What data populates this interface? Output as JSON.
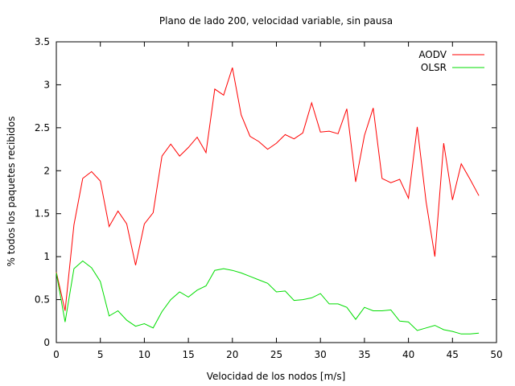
{
  "chart_data": {
    "type": "line",
    "title": "Plano de lado 200, velocidad variable, sin pausa",
    "xlabel": "Velocidad de los nodos [m/s]",
    "ylabel": "% todos los paquetes recibidos",
    "xlim": [
      0,
      50
    ],
    "ylim": [
      0,
      3.5
    ],
    "xticks": [
      0,
      5,
      10,
      15,
      20,
      25,
      30,
      35,
      40,
      45,
      50
    ],
    "xtick_labels": [
      "0",
      "5",
      "10",
      "15",
      "20",
      "25",
      "30",
      "35",
      "40",
      "45",
      "50"
    ],
    "yticks": [
      0,
      0.5,
      1,
      1.5,
      2,
      2.5,
      3,
      3.5
    ],
    "ytick_labels": [
      "0",
      "0.5",
      "1",
      "1.5",
      "2",
      "2.5",
      "3",
      "3.5"
    ],
    "grid": false,
    "legend_position": "top-right",
    "x": [
      0,
      1,
      2,
      3,
      4,
      5,
      6,
      7,
      8,
      9,
      10,
      11,
      12,
      13,
      14,
      15,
      16,
      17,
      18,
      19,
      20,
      21,
      22,
      23,
      24,
      25,
      26,
      27,
      28,
      29,
      30,
      31,
      32,
      33,
      34,
      35,
      36,
      37,
      38,
      39,
      40,
      41,
      42,
      43,
      44,
      45,
      46,
      47,
      48
    ],
    "series": [
      {
        "name": "AODV",
        "color": "#ff0000",
        "values": [
          0.82,
          0.37,
          1.37,
          1.91,
          1.99,
          1.88,
          1.35,
          1.53,
          1.38,
          0.9,
          1.38,
          1.51,
          2.17,
          2.31,
          2.17,
          2.27,
          2.39,
          2.21,
          2.95,
          2.88,
          3.2,
          2.65,
          2.4,
          2.34,
          2.25,
          2.32,
          2.42,
          2.37,
          2.44,
          2.79,
          2.45,
          2.46,
          2.43,
          2.72,
          1.87,
          2.41,
          2.73,
          1.91,
          1.86,
          1.9,
          1.68,
          2.51,
          1.64,
          1.0,
          2.32,
          1.66,
          2.08,
          1.9,
          1.71
        ]
      },
      {
        "name": "OLSR",
        "color": "#00dd00",
        "values": [
          0.81,
          0.24,
          0.86,
          0.95,
          0.87,
          0.71,
          0.31,
          0.37,
          0.26,
          0.19,
          0.22,
          0.17,
          0.36,
          0.5,
          0.59,
          0.53,
          0.61,
          0.66,
          0.84,
          0.86,
          0.84,
          0.81,
          0.77,
          0.73,
          0.69,
          0.59,
          0.6,
          0.49,
          0.5,
          0.52,
          0.57,
          0.45,
          0.45,
          0.41,
          0.27,
          0.41,
          0.37,
          0.37,
          0.38,
          0.25,
          0.24,
          0.14,
          0.17,
          0.2,
          0.15,
          0.13,
          0.1,
          0.1,
          0.11
        ]
      }
    ]
  }
}
